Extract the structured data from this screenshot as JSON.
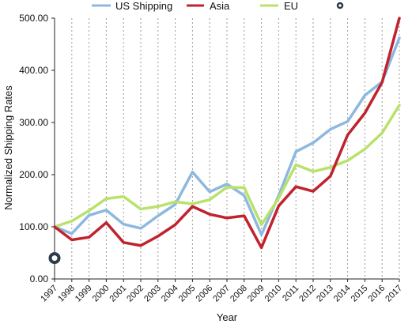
{
  "chart_data": {
    "type": "line",
    "title": "",
    "xlabel": "Year",
    "ylabel": "Normalized Shipping Rates",
    "ylim": [
      0,
      500
    ],
    "yticks": [
      "0.00",
      "100.00",
      "200.00",
      "300.00",
      "400.00",
      "500.00"
    ],
    "categories": [
      "1997",
      "1998",
      "1999",
      "2000",
      "2001",
      "2002",
      "2003",
      "2004",
      "2005",
      "2006",
      "2007",
      "2008",
      "2009",
      "2010",
      "2011",
      "2012",
      "2013",
      "2014",
      "2015",
      "2016",
      "2017"
    ],
    "grid": {
      "vertical": "dotted",
      "horizontal": "none"
    },
    "legend_position": "top",
    "series": [
      {
        "name": "US Shipping",
        "color": "#8db8e0",
        "values": [
          100,
          87,
          122,
          132,
          105,
          97,
          121,
          143,
          205,
          167,
          182,
          160,
          85,
          160,
          244,
          261,
          287,
          302,
          352,
          378,
          462
        ]
      },
      {
        "name": "Asia",
        "color": "#c0222e",
        "values": [
          100,
          75,
          80,
          108,
          70,
          64,
          82,
          104,
          139,
          124,
          117,
          121,
          60,
          140,
          177,
          168,
          197,
          276,
          318,
          377,
          500
        ]
      },
      {
        "name": "EU",
        "color": "#b8e26a",
        "values": [
          100,
          111,
          131,
          154,
          158,
          134,
          139,
          148,
          144,
          152,
          176,
          175,
          104,
          155,
          219,
          206,
          214,
          227,
          249,
          280,
          333
        ]
      }
    ],
    "extra_legend_marker": {
      "icon": "ring-marker-icon",
      "color": "#2b3a4a"
    },
    "stray_marker": {
      "icon": "ring-marker-icon",
      "color": "#2b3a4a",
      "x": "1997",
      "y": 40
    }
  }
}
